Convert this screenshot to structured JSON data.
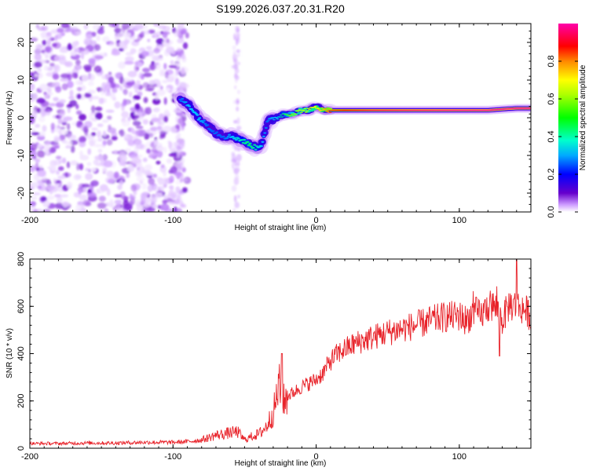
{
  "title": "S199.2026.037.20.31.R20",
  "chart_data": [
    {
      "type": "heatmap",
      "title": "S199.2026.037.20.31.R20",
      "xlabel": "Height of straight line (km)",
      "ylabel": "Frequency (Hz)",
      "xlim": [
        -200,
        150
      ],
      "ylim": [
        -25,
        25
      ],
      "xticks": [
        -200,
        -100,
        0,
        100
      ],
      "yticks": [
        -20,
        -10,
        0,
        10,
        20
      ],
      "colorbar": {
        "label": "Normalized spectral amplitude",
        "range": [
          0,
          1
        ],
        "ticks": [
          "0.0",
          "0.2",
          "0.4",
          "0.6",
          "0.8"
        ],
        "tick_values": [
          0.0,
          0.2,
          0.4,
          0.6,
          0.8
        ]
      },
      "colormap": [
        "#ffffff",
        "#cc99ff",
        "#6600cc",
        "#0000ff",
        "#00ccff",
        "#00ff66",
        "#88ff00",
        "#ffff00",
        "#ff8800",
        "#ff0000",
        "#ff00aa"
      ],
      "signal_track": {
        "heights_km": [
          -95,
          -88,
          -82,
          -76,
          -70,
          -64,
          -58,
          -52,
          -47,
          -42,
          -38,
          -34,
          -28,
          -22,
          -16,
          -10,
          -5,
          0,
          5,
          10,
          20,
          40,
          60,
          80,
          100,
          120,
          140,
          150
        ],
        "frequencies_hz": [
          5,
          3,
          0,
          -2,
          -4,
          -5,
          -5,
          -6,
          -7,
          -8,
          -7,
          -1,
          0,
          1,
          1,
          2,
          2,
          3,
          2,
          2,
          2,
          2,
          2,
          2,
          2,
          2,
          2.5,
          2.5
        ],
        "amplitudes": [
          0.3,
          0.35,
          0.35,
          0.3,
          0.3,
          0.3,
          0.35,
          0.4,
          0.45,
          0.4,
          0.35,
          0.3,
          0.35,
          0.45,
          0.55,
          0.6,
          0.6,
          0.65,
          0.7,
          0.8,
          0.85,
          0.9,
          0.92,
          0.93,
          0.95,
          0.95,
          0.95,
          0.95
        ]
      },
      "noise_region_km": [
        -200,
        -100
      ]
    },
    {
      "type": "line",
      "xlabel": "Height of straight line (km)",
      "ylabel": "SNR (10 * v/v)",
      "xlim": [
        -200,
        150
      ],
      "ylim": [
        0,
        800
      ],
      "xticks": [
        -200,
        -100,
        0,
        100
      ],
      "yticks": [
        0,
        200,
        400,
        600,
        800
      ],
      "series": [
        {
          "name": "SNR",
          "color": "#e8232a",
          "x": [
            -200,
            -180,
            -160,
            -140,
            -120,
            -100,
            -90,
            -80,
            -75,
            -70,
            -65,
            -60,
            -55,
            -50,
            -45,
            -40,
            -35,
            -30,
            -28,
            -26,
            -24,
            -22,
            -20,
            -15,
            -10,
            -5,
            0,
            5,
            10,
            15,
            20,
            30,
            40,
            50,
            60,
            70,
            80,
            90,
            100,
            105,
            110,
            115,
            120,
            125,
            130,
            135,
            140,
            145,
            150
          ],
          "y": [
            20,
            20,
            22,
            22,
            25,
            25,
            28,
            35,
            45,
            55,
            60,
            65,
            70,
            35,
            50,
            60,
            90,
            150,
            200,
            270,
            190,
            200,
            220,
            240,
            260,
            275,
            290,
            320,
            370,
            400,
            420,
            450,
            470,
            490,
            505,
            520,
            540,
            555,
            560,
            540,
            580,
            560,
            600,
            600,
            540,
            610,
            600,
            590,
            560
          ]
        }
      ]
    }
  ]
}
